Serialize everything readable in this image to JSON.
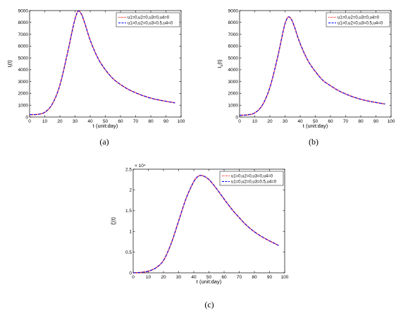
{
  "chart_data": [
    {
      "type": "line",
      "panel": "(a)",
      "ylabel": "I_l(t)",
      "xlabel": "t (unit:day)",
      "xlim": [
        0,
        100
      ],
      "ylim": [
        0,
        9000
      ],
      "xticks": [
        "0",
        "10",
        "20",
        "30",
        "40",
        "50",
        "60",
        "70",
        "80",
        "90",
        "100"
      ],
      "yticks": [
        "0",
        "1000",
        "2000",
        "3000",
        "4000",
        "5000",
        "6000",
        "7000",
        "8000",
        "9000"
      ],
      "y_exponent": "",
      "grid": false,
      "legend_position": "top-right",
      "series": [
        {
          "name": "u1=0,u2=0,u3=0,u4=0",
          "color": "#ff0000",
          "style": "dotted"
        },
        {
          "name": "u1=0,u2=0,u3=0.5,u4=0",
          "color": "#0000ff",
          "style": "dashed"
        }
      ],
      "x": [
        0,
        5,
        10,
        15,
        20,
        25,
        28,
        30,
        32,
        34,
        36,
        40,
        45,
        50,
        55,
        60,
        65,
        70,
        75,
        80,
        85,
        90,
        96
      ],
      "values": [
        200,
        220,
        400,
        1100,
        2700,
        5400,
        7200,
        8300,
        8950,
        8750,
        8100,
        6500,
        5000,
        4000,
        3250,
        2750,
        2350,
        2050,
        1800,
        1600,
        1450,
        1330,
        1200
      ]
    },
    {
      "type": "line",
      "panel": "(b)",
      "ylabel": "I_u(t)",
      "xlabel": "t (unit:day)",
      "xlim": [
        0,
        100
      ],
      "ylim": [
        0,
        9000
      ],
      "xticks": [
        "0",
        "10",
        "20",
        "30",
        "40",
        "50",
        "60",
        "70",
        "80",
        "90",
        "100"
      ],
      "yticks": [
        "0",
        "1000",
        "2000",
        "3000",
        "4000",
        "5000",
        "6000",
        "7000",
        "8000",
        "9000"
      ],
      "y_exponent": "",
      "grid": false,
      "legend_position": "top-right",
      "series": [
        {
          "name": "u1=0,u2=0,u3=0,u4=0",
          "color": "#ff0000",
          "style": "dotted"
        },
        {
          "name": "u1=0,u2=0,u3=0.5,u4=0",
          "color": "#0000ff",
          "style": "dashed"
        }
      ],
      "x": [
        0,
        5,
        10,
        15,
        20,
        25,
        28,
        30,
        32,
        34,
        36,
        40,
        45,
        50,
        55,
        60,
        65,
        70,
        75,
        80,
        85,
        90,
        96
      ],
      "values": [
        150,
        180,
        350,
        1000,
        2500,
        5000,
        6800,
        7900,
        8450,
        8300,
        7700,
        6200,
        4800,
        3850,
        3100,
        2650,
        2250,
        1950,
        1700,
        1500,
        1350,
        1230,
        1100
      ]
    },
    {
      "type": "line",
      "panel": "(c)",
      "ylabel": "I^r_u(t)",
      "xlabel": "t (unit:day)",
      "xlim": [
        0,
        100
      ],
      "ylim": [
        0,
        25000
      ],
      "xticks": [
        "0",
        "10",
        "20",
        "30",
        "40",
        "50",
        "60",
        "70",
        "80",
        "90",
        "100"
      ],
      "yticks": [
        "0",
        "0.5",
        "1",
        "1.5",
        "2",
        "2.5"
      ],
      "y_exponent": "× 10⁴",
      "grid": false,
      "legend_position": "top-right",
      "series": [
        {
          "name": "u1=0,u2=0,u3=0,u4=0",
          "color": "#ff0000",
          "style": "dotted"
        },
        {
          "name": "u1=0,u2=0,u3=0.5,u4=0",
          "color": "#0000ff",
          "style": "dashed"
        }
      ],
      "x": [
        0,
        5,
        10,
        15,
        20,
        25,
        30,
        35,
        40,
        43,
        46,
        50,
        55,
        60,
        65,
        70,
        75,
        80,
        85,
        90,
        96
      ],
      "values": [
        0,
        100,
        400,
        1200,
        3000,
        7000,
        12500,
        18000,
        22000,
        23300,
        23400,
        22500,
        20300,
        17800,
        15400,
        13300,
        11400,
        9900,
        8700,
        7700,
        6600
      ]
    }
  ],
  "captions": [
    "(a)",
    "(b)",
    "(c)"
  ]
}
